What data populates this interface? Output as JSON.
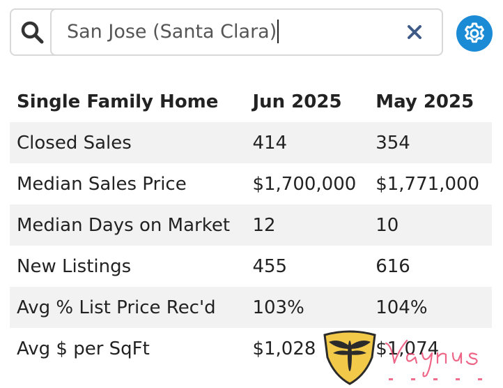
{
  "search": {
    "value": "San Jose (Santa Clara)",
    "icon": "magnifier",
    "clear_icon": "x-mark",
    "settings_icon": "gear"
  },
  "colors": {
    "accent": "#1b8bd6",
    "clear_x": "#3e5a86",
    "row_shade": "#f2f2f2",
    "logo_gold": "#f3c94a",
    "logo_dark": "#2b2b2b",
    "logo_pink": "#e8335f"
  },
  "table": {
    "headers": [
      "Single Family Home",
      "Jun 2025",
      "May 2025"
    ],
    "rows": [
      {
        "label": "Closed Sales",
        "current": "414",
        "previous": "354"
      },
      {
        "label": "Median Sales Price",
        "current": "$1,700,000",
        "previous": "$1,771,000"
      },
      {
        "label": "Median Days on Market",
        "current": "12",
        "previous": "10"
      },
      {
        "label": "New Listings",
        "current": "455",
        "previous": "616"
      },
      {
        "label": "Avg % List Price Rec'd",
        "current": "103%",
        "previous": "104%"
      },
      {
        "label": "Avg $ per SqFt",
        "current": "$1,028",
        "previous": "$1,074"
      }
    ]
  },
  "watermark": {
    "script_text": "Vaynus",
    "caption": "V A Y N U S"
  }
}
